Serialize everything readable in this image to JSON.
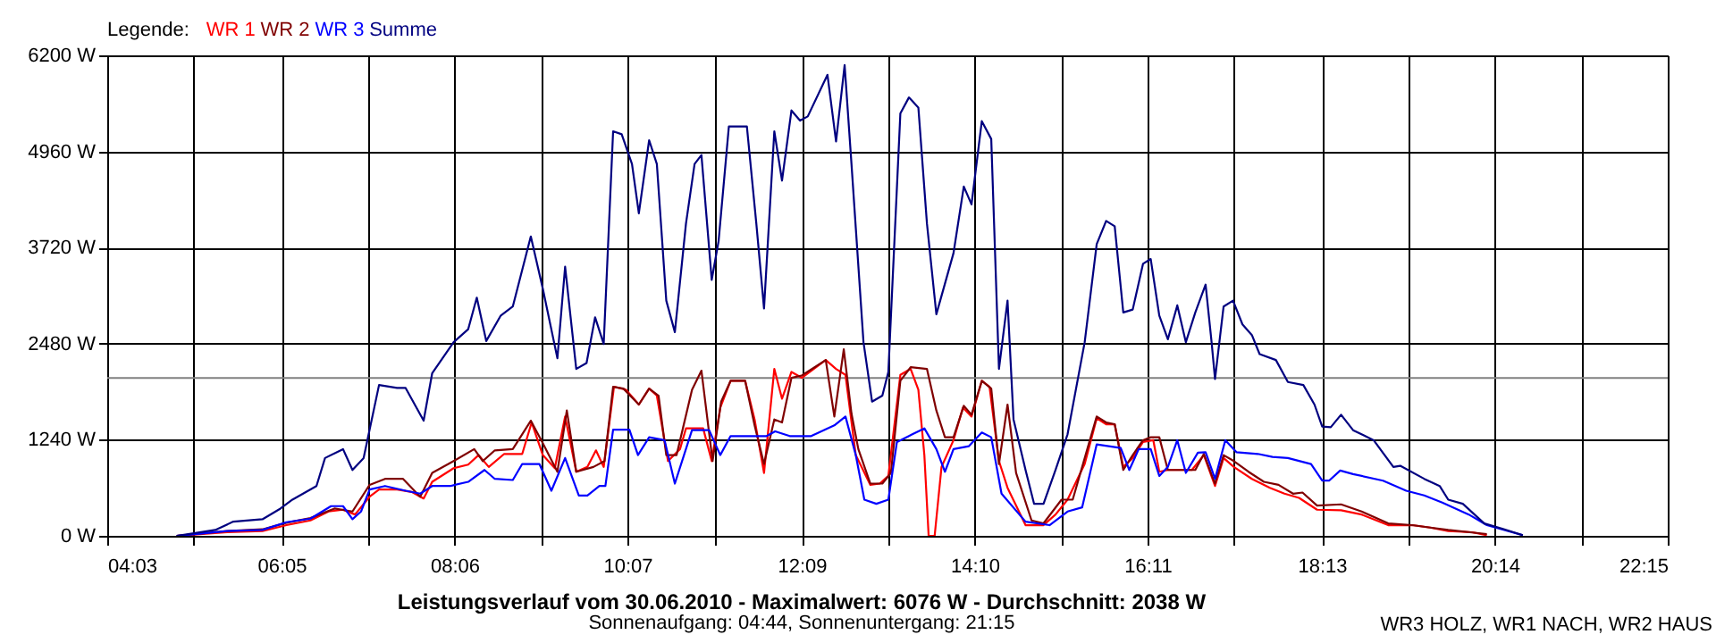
{
  "chart_data": {
    "type": "line",
    "title": "Leistungsverlauf vom 30.06.2010 - Maximalwert: 6076 W - Durchschnitt: 2038 W",
    "subtitle": "Sonnenaufgang: 04:44, Sonnenuntergang: 21:15",
    "annotations": [
      "WR3 HOLZ, WR1 NACH, WR2 HAUS"
    ],
    "legend_title": "Legende:",
    "legend": "top left",
    "grid": true,
    "marker": "none",
    "line_style": "solid",
    "xlim": [
      4.05,
      22.25
    ],
    "xticks": [
      {
        "value": 4.05,
        "label": "04:03"
      },
      {
        "value": 5.0611,
        "label": null
      },
      {
        "value": 6.0833,
        "label": "06:05"
      },
      {
        "value": 7.0944,
        "label": null
      },
      {
        "value": 8.1,
        "label": "08:06"
      },
      {
        "value": 9.1111,
        "label": null
      },
      {
        "value": 10.1167,
        "label": "10:07"
      },
      {
        "value": 11.1278,
        "label": null
      },
      {
        "value": 12.15,
        "label": "12:09"
      },
      {
        "value": 13.1611,
        "label": null
      },
      {
        "value": 14.1667,
        "label": "14:10"
      },
      {
        "value": 15.1778,
        "label": null
      },
      {
        "value": 16.1833,
        "label": "16:11"
      },
      {
        "value": 17.1944,
        "label": null
      },
      {
        "value": 18.2167,
        "label": "18:13"
      },
      {
        "value": 19.2278,
        "label": null
      },
      {
        "value": 20.2333,
        "label": "20:14"
      },
      {
        "value": 21.2444,
        "label": null
      },
      {
        "value": 22.25,
        "label": "22:15"
      }
    ],
    "ylim": [
      0,
      6200
    ],
    "yticks": [
      {
        "value": 0,
        "label": "0 W"
      },
      {
        "value": 1240,
        "label": "1240 W"
      },
      {
        "value": 2480,
        "label": "2480 W"
      },
      {
        "value": 3720,
        "label": "3720 W"
      },
      {
        "value": 4960,
        "label": "4960 W"
      },
      {
        "value": 6200,
        "label": "6200 W"
      }
    ],
    "ref_lines": [
      {
        "axis": "y",
        "value": 2038,
        "color": "#808080"
      }
    ],
    "series": [
      {
        "name": "WR 1",
        "color": "#ff0000",
        "x": [
          4.86,
          5.45,
          5.86,
          6.14,
          6.42,
          6.63,
          6.8,
          6.94,
          7.11,
          7.22,
          7.43,
          7.6,
          7.74,
          7.84,
          8.09,
          8.26,
          8.38,
          8.5,
          8.68,
          8.89,
          9.0,
          9.13,
          9.27,
          9.39,
          9.52,
          9.65,
          9.75,
          9.84,
          9.96,
          10.1,
          10.25,
          10.37,
          10.46,
          10.59,
          10.73,
          10.8,
          11.0,
          11.1,
          11.2,
          11.32,
          11.49,
          11.6,
          11.71,
          11.83,
          11.92,
          12.03,
          12.15,
          12.43,
          12.55,
          12.66,
          12.78,
          12.95,
          13.06,
          13.16,
          13.3,
          13.42,
          13.51,
          13.58,
          13.63,
          13.7,
          13.78,
          13.92,
          14.03,
          14.13,
          14.25,
          14.34,
          14.45,
          14.55,
          14.76,
          14.97,
          15.11,
          15.25,
          15.45,
          15.59,
          15.7,
          15.8,
          15.9,
          16.01,
          16.13,
          16.25,
          16.32,
          16.42,
          16.7,
          16.84,
          16.97,
          17.07,
          17.19,
          17.4,
          17.61,
          17.78,
          17.95,
          18.16,
          18.44,
          18.68,
          18.99,
          19.27,
          19.48,
          19.69,
          19.97,
          20.14
        ],
        "values": [
          0,
          46,
          61,
          138,
          199,
          314,
          337,
          275,
          505,
          597,
          597,
          567,
          482,
          697,
          873,
          919,
          1042,
          889,
          1057,
          1057,
          1463,
          1042,
          873,
          1540,
          827,
          889,
          1103,
          889,
          1924,
          1885,
          1694,
          1900,
          1809,
          965,
          1119,
          1387,
          1387,
          965,
          1655,
          2000,
          2000,
          1502,
          812,
          2154,
          1770,
          2115,
          2039,
          2269,
          2154,
          2077,
          1042,
          658,
          674,
          773,
          2077,
          2154,
          1885,
          1042,
          0,
          0,
          889,
          1234,
          1655,
          1540,
          2000,
          1924,
          965,
          620,
          138,
          138,
          275,
          467,
          927,
          1517,
          1440,
          1440,
          889,
          1004,
          1211,
          1234,
          827,
          850,
          850,
          1042,
          643,
          1004,
          889,
          735,
          620,
          544,
          490,
          337,
          329,
          275,
          138,
          138,
          107,
          61,
          46,
          8
        ]
      },
      {
        "name": "WR 2",
        "color": "#800000",
        "x": [
          4.86,
          5.45,
          5.86,
          6.14,
          6.42,
          6.7,
          6.91,
          7.11,
          7.29,
          7.5,
          7.7,
          7.84,
          8.09,
          8.33,
          8.43,
          8.57,
          8.78,
          8.99,
          9.13,
          9.3,
          9.41,
          9.52,
          9.72,
          9.85,
          9.95,
          10.07,
          10.25,
          10.37,
          10.48,
          10.57,
          10.69,
          10.87,
          10.98,
          11.11,
          11.21,
          11.32,
          11.49,
          11.6,
          11.71,
          11.83,
          11.92,
          12.03,
          12.15,
          12.43,
          12.53,
          12.64,
          12.73,
          12.81,
          12.95,
          13.09,
          13.19,
          13.3,
          13.42,
          13.61,
          13.72,
          13.82,
          13.92,
          14.04,
          14.13,
          14.25,
          14.36,
          14.45,
          14.55,
          14.65,
          14.83,
          14.97,
          15.18,
          15.31,
          15.59,
          15.7,
          15.8,
          15.9,
          16.01,
          16.13,
          16.22,
          16.32,
          16.42,
          16.74,
          16.84,
          16.97,
          17.07,
          17.19,
          17.36,
          17.54,
          17.71,
          17.88,
          17.99,
          18.16,
          18.44,
          18.68,
          18.99,
          19.27,
          19.48,
          19.69,
          20.14
        ],
        "values": [
          0,
          61,
          84,
          168,
          229,
          352,
          314,
          658,
          735,
          735,
          505,
          812,
          965,
          1119,
          965,
          1103,
          1119,
          1486,
          1195,
          827,
          1617,
          827,
          889,
          965,
          1924,
          1900,
          1694,
          1900,
          1809,
          1042,
          1042,
          1885,
          2131,
          965,
          1732,
          2000,
          2000,
          1425,
          927,
          1502,
          1463,
          2039,
          2069,
          2269,
          1540,
          2407,
          1578,
          1119,
          674,
          674,
          812,
          2000,
          2177,
          2154,
          1617,
          1272,
          1272,
          1678,
          1563,
          2000,
          1900,
          927,
          1694,
          812,
          199,
          161,
          467,
          467,
          1540,
          1463,
          1440,
          850,
          1042,
          1234,
          1272,
          1272,
          850,
          850,
          1057,
          674,
          1042,
          965,
          827,
          697,
          658,
          544,
          559,
          390,
          406,
          314,
          161,
          138,
          107,
          76,
          23
        ]
      },
      {
        "name": "WR 3",
        "color": "#0000ff",
        "x": [
          4.86,
          5.45,
          5.86,
          6.14,
          6.42,
          6.66,
          6.8,
          6.91,
          7.01,
          7.11,
          7.29,
          7.53,
          7.7,
          7.84,
          8.05,
          8.26,
          8.45,
          8.57,
          8.78,
          8.89,
          9.09,
          9.23,
          9.39,
          9.55,
          9.65,
          9.79,
          9.86,
          9.95,
          10.14,
          10.24,
          10.37,
          10.55,
          10.67,
          10.87,
          11.07,
          11.2,
          11.32,
          11.74,
          11.84,
          12.01,
          12.26,
          12.53,
          12.66,
          12.78,
          12.88,
          13.02,
          13.16,
          13.26,
          13.44,
          13.58,
          13.72,
          13.82,
          13.92,
          14.1,
          14.25,
          14.36,
          14.48,
          14.76,
          15.04,
          15.25,
          15.42,
          15.59,
          15.87,
          15.97,
          16.08,
          16.22,
          16.32,
          16.42,
          16.53,
          16.63,
          16.77,
          16.86,
          16.97,
          17.09,
          17.22,
          17.47,
          17.64,
          17.82,
          18.09,
          18.22,
          18.3,
          18.43,
          18.58,
          18.93,
          19.2,
          19.41,
          19.62,
          19.93,
          20.14,
          20.39,
          20.56
        ],
        "values": [
          0,
          61,
          76,
          176,
          222,
          383,
          383,
          214,
          314,
          597,
          643,
          582,
          544,
          643,
          643,
          697,
          850,
          735,
          720,
          927,
          927,
          582,
          1004,
          521,
          521,
          643,
          643,
          1371,
          1371,
          1042,
          1272,
          1234,
          674,
          1364,
          1364,
          1042,
          1287,
          1287,
          1348,
          1287,
          1287,
          1425,
          1540,
          1042,
          467,
          413,
          467,
          1211,
          1310,
          1387,
          1119,
          827,
          1119,
          1157,
          1333,
          1272,
          544,
          183,
          138,
          314,
          367,
          1180,
          1134,
          850,
          1119,
          1119,
          773,
          889,
          1234,
          812,
          1073,
          1080,
          735,
          1234,
          1080,
          1057,
          1019,
          1004,
          927,
          712,
          712,
          843,
          797,
          712,
          582,
          521,
          429,
          275,
          138,
          61,
          8
        ]
      },
      {
        "name": "Summe",
        "color": "#000080",
        "x": [
          4.86,
          5.31,
          5.52,
          5.86,
          6.07,
          6.21,
          6.49,
          6.59,
          6.8,
          6.91,
          7.04,
          7.22,
          7.43,
          7.53,
          7.74,
          7.84,
          8.09,
          8.26,
          8.36,
          8.47,
          8.64,
          8.78,
          8.99,
          9.13,
          9.3,
          9.39,
          9.52,
          9.64,
          9.74,
          9.84,
          9.95,
          10.05,
          10.17,
          10.25,
          10.37,
          10.46,
          10.57,
          10.67,
          10.8,
          10.9,
          10.98,
          11.1,
          11.18,
          11.3,
          11.51,
          11.62,
          11.71,
          11.83,
          11.92,
          12.03,
          12.13,
          12.22,
          12.45,
          12.55,
          12.65,
          12.73,
          12.87,
          12.97,
          13.09,
          13.16,
          13.3,
          13.4,
          13.51,
          13.61,
          13.72,
          13.92,
          14.04,
          14.13,
          14.25,
          14.36,
          14.45,
          14.55,
          14.62,
          14.76,
          14.86,
          14.97,
          15.11,
          15.25,
          15.45,
          15.59,
          15.7,
          15.8,
          15.9,
          16.01,
          16.13,
          16.22,
          16.32,
          16.42,
          16.53,
          16.63,
          16.74,
          16.86,
          16.93,
          16.97,
          17.07,
          17.18,
          17.29,
          17.4,
          17.49,
          17.68,
          17.82,
          18.0,
          18.13,
          18.22,
          18.32,
          18.44,
          18.58,
          18.82,
          19.05,
          19.13,
          19.41,
          19.59,
          19.69,
          19.86,
          20.11,
          20.32,
          20.56
        ],
        "values": [
          0,
          76,
          183,
          214,
          352,
          467,
          643,
          1004,
          1119,
          850,
          1004,
          1946,
          1908,
          1908,
          1486,
          2100,
          2499,
          2667,
          3074,
          2514,
          2843,
          2959,
          3863,
          3189,
          2292,
          3472,
          2154,
          2230,
          2820,
          2476,
          5220,
          5182,
          4799,
          4162,
          5105,
          4799,
          3035,
          2629,
          4032,
          4799,
          4914,
          3304,
          3802,
          5282,
          5282,
          4032,
          2935,
          5220,
          4584,
          5489,
          5358,
          5412,
          5949,
          5090,
          6076,
          4799,
          2499,
          1732,
          1809,
          2115,
          5450,
          5657,
          5527,
          4032,
          2859,
          3649,
          4507,
          4277,
          5351,
          5121,
          2154,
          3035,
          1502,
          850,
          413,
          413,
          850,
          1310,
          2499,
          3764,
          4063,
          3994,
          2882,
          2920,
          3510,
          3572,
          2843,
          2537,
          2974,
          2499,
          2882,
          3242,
          2499,
          2023,
          2959,
          3035,
          2728,
          2591,
          2345,
          2269,
          1985,
          1946,
          1694,
          1410,
          1402,
          1563,
          1364,
          1234,
          889,
          904,
          736,
          643,
          467,
          413,
          160,
          92,
          8
        ]
      }
    ]
  }
}
